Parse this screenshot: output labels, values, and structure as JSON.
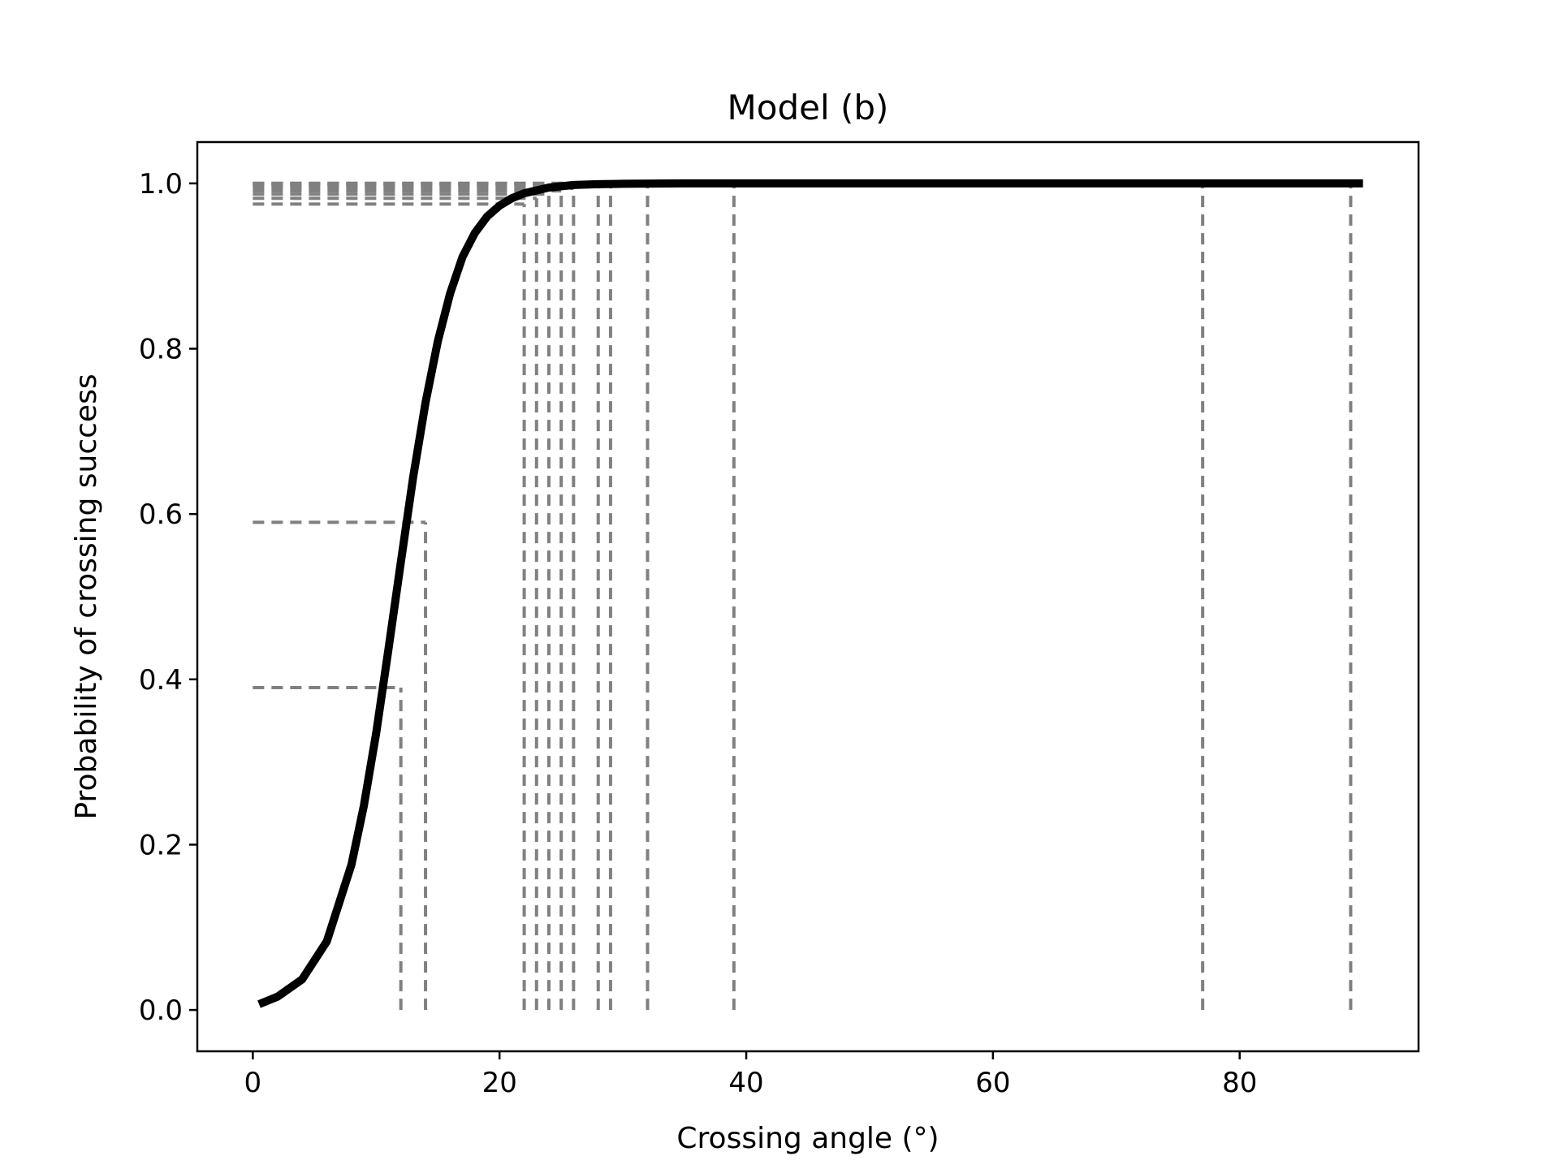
{
  "chart_data": {
    "type": "line",
    "title": "Model (b)",
    "xlabel": "Crossing angle (°)",
    "ylabel": "Probability of crossing success",
    "xlim": [
      -4.5,
      94.5
    ],
    "ylim": [
      -0.05,
      1.05
    ],
    "xticks": [
      0,
      20,
      40,
      60,
      80
    ],
    "yticks": [
      0.0,
      0.2,
      0.4,
      0.6,
      0.8,
      1.0
    ],
    "xtick_labels": [
      "0",
      "20",
      "40",
      "60",
      "80"
    ],
    "ytick_labels": [
      "0.0",
      "0.2",
      "0.4",
      "0.6",
      "0.8",
      "1.0"
    ],
    "grid": false,
    "series": [
      {
        "color": "#000000",
        "x": [
          0.5,
          2,
          4,
          6,
          8,
          9,
          10,
          11,
          12,
          13,
          14,
          15,
          16,
          17,
          18,
          19,
          20,
          21,
          22,
          24,
          26,
          28,
          30,
          35,
          40,
          50,
          60,
          70,
          80,
          90
        ],
        "y": [
          0.007,
          0.016,
          0.037,
          0.083,
          0.176,
          0.247,
          0.335,
          0.437,
          0.542,
          0.645,
          0.735,
          0.809,
          0.867,
          0.911,
          0.94,
          0.96,
          0.973,
          0.982,
          0.988,
          0.995,
          0.998,
          0.999,
          0.9995,
          1.0,
          1.0,
          1.0,
          1.0,
          1.0,
          1.0,
          1.0
        ]
      }
    ],
    "reference_lines": {
      "color": "#808080",
      "points": [
        {
          "x": 12,
          "y": 0.39
        },
        {
          "x": 14,
          "y": 0.59
        },
        {
          "x": 22,
          "y": 0.975
        },
        {
          "x": 23,
          "y": 0.982
        },
        {
          "x": 24,
          "y": 0.987
        },
        {
          "x": 25,
          "y": 0.991
        },
        {
          "x": 26,
          "y": 0.994
        },
        {
          "x": 28,
          "y": 0.997
        },
        {
          "x": 29,
          "y": 0.998
        },
        {
          "x": 32,
          "y": 0.999
        },
        {
          "x": 39,
          "y": 1.0
        },
        {
          "x": 77,
          "y": 1.0
        },
        {
          "x": 89,
          "y": 1.0
        }
      ]
    }
  }
}
